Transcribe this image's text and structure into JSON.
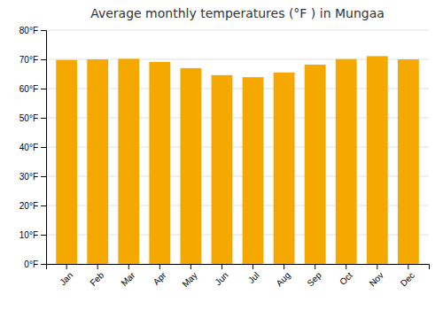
{
  "chart_data": {
    "type": "bar",
    "title": "Average monthly temperatures (°F ) in Mungaa",
    "categories": [
      "Jan",
      "Feb",
      "Mar",
      "Apr",
      "May",
      "Jun",
      "Jul",
      "Aug",
      "Sep",
      "Oct",
      "Nov",
      "Dec"
    ],
    "values": [
      69.8,
      70.0,
      70.2,
      69.1,
      67.0,
      64.6,
      63.9,
      65.5,
      68.2,
      70.1,
      71.1,
      70.0
    ],
    "color": "#F5A800",
    "ylim": [
      0,
      80
    ],
    "yticks": [
      {
        "value": 0,
        "label": "0°F"
      },
      {
        "value": 10,
        "label": "10°F"
      },
      {
        "value": 20,
        "label": "20°F"
      },
      {
        "value": 30,
        "label": "30°F"
      },
      {
        "value": 40,
        "label": "40°F"
      },
      {
        "value": 50,
        "label": "50°F"
      },
      {
        "value": 60,
        "label": "60°F"
      },
      {
        "value": 70,
        "label": "70°F"
      },
      {
        "value": 80,
        "label": "80°F"
      }
    ],
    "grid": true
  }
}
